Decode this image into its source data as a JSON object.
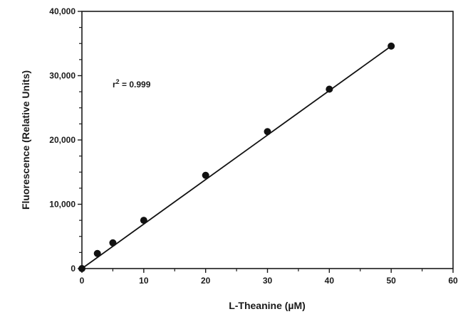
{
  "chart_data": {
    "type": "scatter",
    "xlabel": "L-Theanine (µM)",
    "ylabel": "Fluorescence (Relative Units)",
    "xlim": [
      0,
      60
    ],
    "ylim": [
      0,
      40000
    ],
    "x_ticks": [
      0,
      10,
      20,
      30,
      40,
      50,
      60
    ],
    "x_tick_labels": [
      "0",
      "10",
      "20",
      "30",
      "40",
      "50",
      "60"
    ],
    "y_ticks": [
      0,
      10000,
      20000,
      30000,
      40000
    ],
    "y_tick_labels": [
      "0",
      "10,000",
      "20,000",
      "30,000",
      "40,000"
    ],
    "grid": false,
    "series": [
      {
        "x": [
          0,
          2.5,
          5,
          10,
          20,
          30,
          40,
          50
        ],
        "y": [
          0,
          2350,
          4000,
          7500,
          14500,
          21300,
          27900,
          34600
        ]
      }
    ],
    "fit_line": {
      "x": [
        0,
        50
      ],
      "y": [
        0,
        34600
      ]
    },
    "annotation": {
      "base": "r",
      "superscript": "2",
      "rest": " = 0.999"
    },
    "colors": {
      "marker": "#111111",
      "line": "#111111",
      "axis": "#1a1a1a"
    }
  }
}
